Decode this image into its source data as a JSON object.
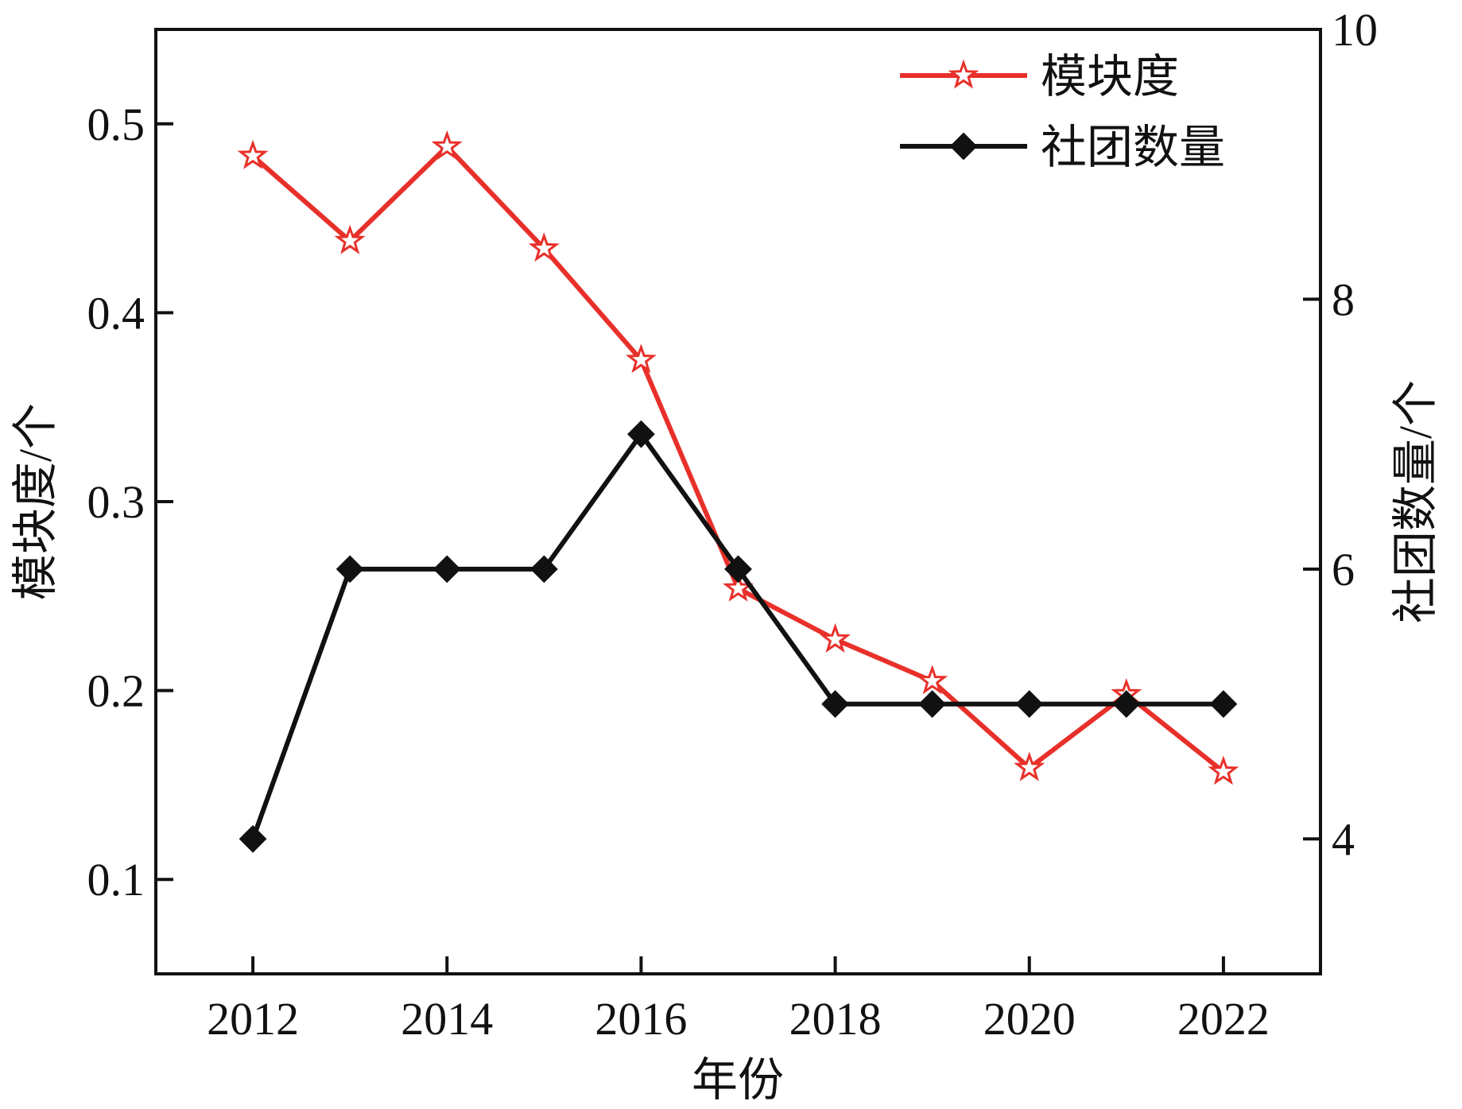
{
  "chart_data": {
    "type": "line",
    "title": "",
    "xlabel": "年份",
    "ylabel_left": "模块度/个",
    "ylabel_right": "社团数量/个",
    "x": [
      2012,
      2013,
      2014,
      2015,
      2016,
      2017,
      2018,
      2019,
      2020,
      2021,
      2022
    ],
    "x_ticks": [
      "2012",
      "2014",
      "2016",
      "2018",
      "2020",
      "2022"
    ],
    "xlim": [
      2011,
      2023
    ],
    "ylim_left": [
      0.05,
      0.55
    ],
    "yticks_left": [
      "0.1",
      "0.2",
      "0.3",
      "0.4",
      "0.5"
    ],
    "ylim_right": [
      3,
      10
    ],
    "yticks_right": [
      "4",
      "6",
      "8",
      "10"
    ],
    "legend_position": "top-right",
    "grid": false,
    "series": [
      {
        "name": "模块度",
        "axis": "left",
        "color": "#e8302a",
        "marker": "open-star",
        "values": [
          0.483,
          0.438,
          0.488,
          0.434,
          0.375,
          0.254,
          0.227,
          0.205,
          0.159,
          0.198,
          0.157
        ]
      },
      {
        "name": "社团数量",
        "axis": "right",
        "color": "#111111",
        "marker": "filled-diamond",
        "values": [
          4,
          6,
          6,
          6,
          7,
          6,
          5,
          5,
          5,
          5,
          5
        ]
      }
    ]
  }
}
